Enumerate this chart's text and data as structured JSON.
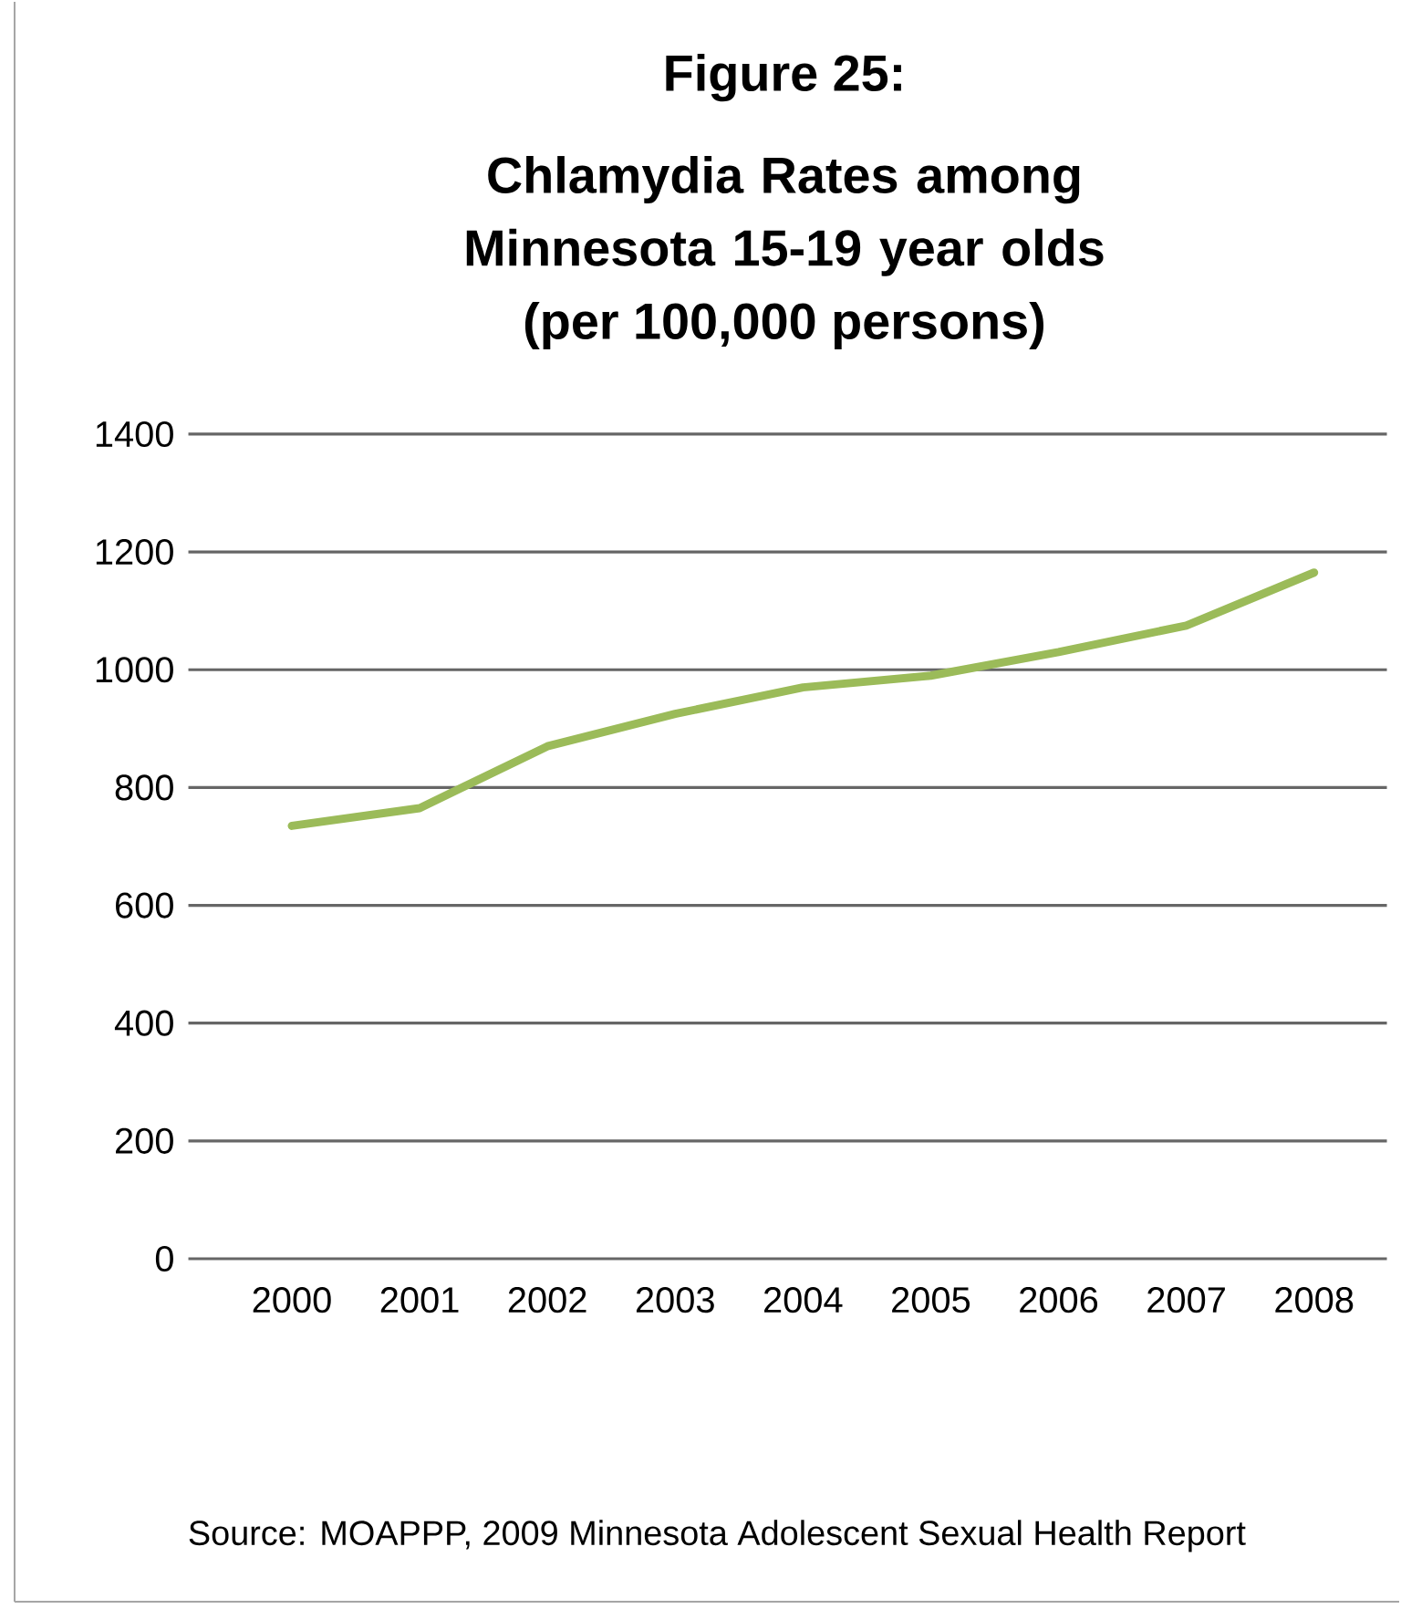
{
  "chart_data": {
    "type": "line",
    "title": "Figure 25:",
    "subtitle": "Chlamydia Rates among Minnesota 15-19 year olds",
    "ylabel": "(per 100,000 persons)",
    "categories": [
      "2000",
      "2001",
      "2002",
      "2003",
      "2004",
      "2005",
      "2006",
      "2007",
      "2008"
    ],
    "series": [
      {
        "color": "#9bbb59",
        "values": [
          735,
          765,
          870,
          925,
          970,
          990,
          1030,
          1075,
          1165
        ]
      }
    ],
    "ylim": [
      0,
      1400
    ],
    "yticks": [
      0,
      200,
      400,
      600,
      800,
      1000,
      1200,
      1400
    ],
    "grid": "y",
    "marker": "none",
    "line_style": "solid",
    "annotations": [
      "Source: MOAPPP, 2009 Minnesota Adolescent Sexual Health Report"
    ]
  }
}
